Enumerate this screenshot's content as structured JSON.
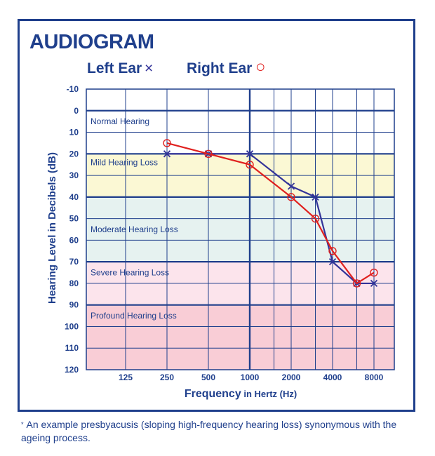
{
  "colors": {
    "frame": "#1f3f8c",
    "left_ear": "#333399",
    "right_ear": "#e0201e",
    "band_mild": "#fbf8d4",
    "band_moderate": "#e6f2f0",
    "band_severe": "#fce4ec",
    "band_profound": "#f9cdd6"
  },
  "chart_data": {
    "type": "line",
    "title": "AUDIOGRAM",
    "xlabel_main": "Frequency",
    "xlabel_suffix": " in Hertz (Hz)",
    "ylabel": "Hearing Level in Decibels (dB)",
    "x_categories": [
      "125",
      "250",
      "500",
      "1000",
      "2000",
      "4000",
      "8000"
    ],
    "y_ticks": [
      -10,
      0,
      10,
      20,
      30,
      40,
      50,
      60,
      70,
      80,
      90,
      100,
      110,
      120
    ],
    "ylim": [
      -10,
      120
    ],
    "y_inverted": true,
    "x_scale": "log2",
    "legend_placement": "top",
    "bands": [
      {
        "label": "Normal Hearing",
        "from": 0,
        "to": 20,
        "color_key": "none"
      },
      {
        "label": "Mild Hearing Loss",
        "from": 20,
        "to": 40,
        "color_key": "band_mild"
      },
      {
        "label": "Moderate Hearing Loss",
        "from": 40,
        "to": 70,
        "color_key": "band_moderate"
      },
      {
        "label": "Severe Hearing Loss",
        "from": 70,
        "to": 90,
        "color_key": "band_severe"
      },
      {
        "label": "Profound Hearing Loss",
        "from": 90,
        "to": 120,
        "color_key": "band_profound"
      }
    ],
    "series": [
      {
        "name": "Left Ear",
        "marker": "x",
        "symbol": "×",
        "color_key": "left_ear",
        "x": [
          250,
          500,
          1000,
          2000,
          3000,
          4000,
          6000,
          8000
        ],
        "y": [
          20,
          20,
          20,
          35,
          40,
          70,
          80,
          80
        ]
      },
      {
        "name": "Right Ear",
        "marker": "o",
        "symbol": "○",
        "color_key": "right_ear",
        "x": [
          250,
          500,
          1000,
          2000,
          3000,
          4000,
          6000,
          8000
        ],
        "y": [
          15,
          20,
          25,
          40,
          50,
          65,
          80,
          75
        ]
      }
    ]
  },
  "footnote": {
    "mark": "*",
    "text": "An example presbyacusis (sloping high-frequency hearing loss) synonymous with the ageing process."
  }
}
